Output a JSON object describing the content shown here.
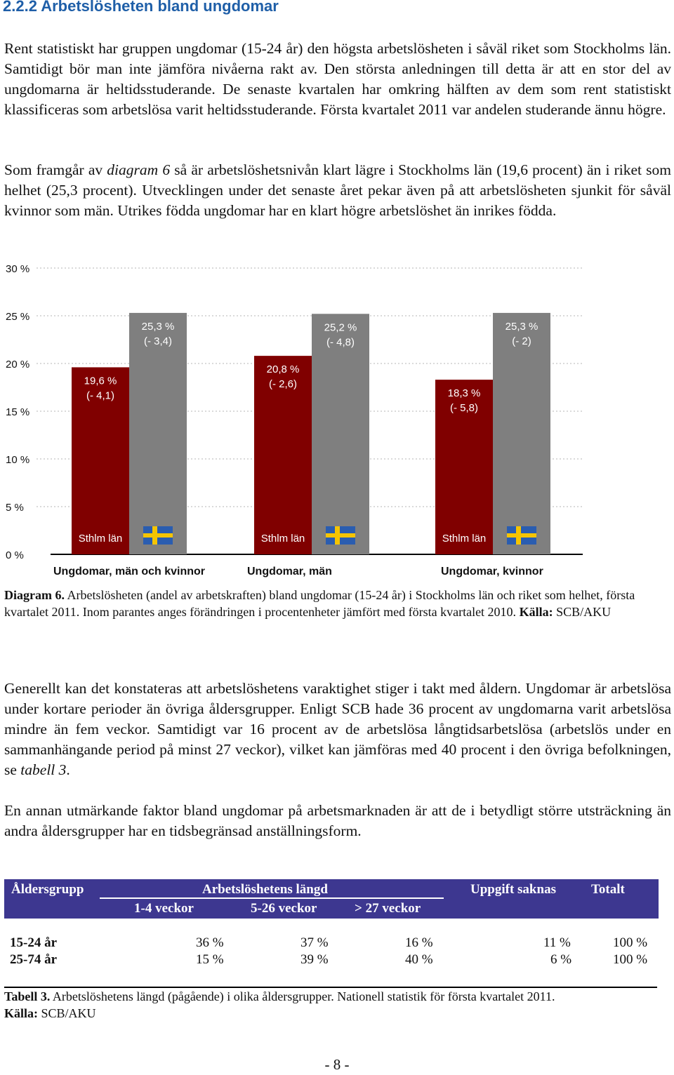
{
  "heading": "2.2.2 Arbetslösheten bland ungdomar",
  "paragraph1": "Rent statistiskt har gruppen ungdomar (15-24 år) den högsta arbetslösheten i såväl riket som Stockholms län. Samtidigt bör man inte jämföra nivåerna rakt av. Den största anledningen till detta är att en stor del av ungdomarna är heltidsstuderande. De senaste kvartalen har omkring hälften av dem som rent statistiskt klassificeras som arbetslösa varit heltidsstuderande. Första kvartalet 2011 var andelen studerande ännu högre.",
  "paragraph2": {
    "before": "Som framgår av ",
    "italic": "diagram 6",
    "after": " så är arbetslöshetsnivån klart lägre i Stockholms län (19,6 procent) än i riket som helhet (25,3 procent). Utvecklingen under det senaste året pekar även på att arbetslösheten sjunkit för såväl kvinnor som män. Utrikes födda ungdomar har en klart högre arbetslöshet än inrikes födda."
  },
  "chart_data": {
    "type": "bar",
    "ylim": [
      0,
      30
    ],
    "yticks": [
      "0 %",
      "5 %",
      "10 %",
      "15 %",
      "20 %",
      "25 %",
      "30 %"
    ],
    "colors": {
      "sthlm": "#800000",
      "riket": "#7f7f7f"
    },
    "groups": [
      {
        "name": "Ungdomar, män och kvinnor",
        "bars": [
          {
            "value": 19.6,
            "label": "19,6 %",
            "change": "(- 4,1)",
            "series": "sthlm",
            "tag": "Sthlm län"
          },
          {
            "value": 25.3,
            "label": "25,3 %",
            "change": "(- 3,4)",
            "series": "riket",
            "tag": "flag"
          }
        ]
      },
      {
        "name": "Ungdomar, män",
        "bars": [
          {
            "value": 20.8,
            "label": "20,8 %",
            "change": "(- 2,6)",
            "series": "sthlm",
            "tag": "Sthlm län"
          },
          {
            "value": 25.2,
            "label": "25,2 %",
            "change": "(- 4,8)",
            "series": "riket",
            "tag": "flag"
          }
        ]
      },
      {
        "name": "Ungdomar, kvinnor",
        "bars": [
          {
            "value": 18.3,
            "label": "18,3 %",
            "change": "(- 5,8)",
            "series": "sthlm",
            "tag": "Sthlm län"
          },
          {
            "value": 25.3,
            "label": "25,3 %",
            "change": "(- 2)",
            "series": "riket",
            "tag": "flag"
          }
        ]
      }
    ]
  },
  "diagram_caption": {
    "label": "Diagram 6.",
    "text": " Arbetslösheten (andel av arbetskraften) bland ungdomar (15-24 år) i Stockholms län och riket som helhet, första kvartalet 2011. Inom parantes anges förändringen i procentenheter jämfört med första kvartalet 2010. ",
    "source_label": "Källa:",
    "source": " SCB/AKU"
  },
  "paragraph3": {
    "before": "Generellt kan det konstateras att arbetslöshetens varaktighet stiger i takt med åldern. Ungdomar är arbetslösa under kortare perioder än övriga åldersgrupper. Enligt SCB hade 36 procent av ungdomarna varit arbetslösa mindre än fem veckor. Samtidigt var 16 procent av de arbetslösa långtidsarbetslösa (arbetslös under en sammanhängande period på minst 27 veckor), vilket kan jämföras med 40 procent i den övriga befolkningen, se ",
    "italic": "tabell 3",
    "after": "."
  },
  "paragraph4": "En annan utmärkande faktor bland ungdomar på arbetsmarknaden är att de i betydligt större utsträckning än andra åldersgrupper har en tidsbegränsad anställningsform.",
  "table": {
    "header": {
      "group": "Åldersgrupp",
      "length": "Arbetslöshetens längd",
      "missing": "Uppgift saknas",
      "total": "Totalt",
      "sub": [
        "1-4 veckor",
        "5-26 veckor",
        "> 27 veckor"
      ]
    },
    "rows": [
      {
        "group": "15-24 år",
        "v1": "36 %",
        "v2": "37 %",
        "v3": "16 %",
        "missing": "11 %",
        "total": "100 %"
      },
      {
        "group": "25-74 år",
        "v1": "15 %",
        "v2": "39 %",
        "v3": "40 %",
        "missing": "6 %",
        "total": "100 %"
      }
    ],
    "caption_label": "Tabell 3.",
    "caption_text": " Arbetslöshetens längd (pågående) i olika åldersgrupper. Nationell statistik för första kvartalet 2011.",
    "source_label": "Källa:",
    "source": " SCB/AKU"
  },
  "page_number": "- 8 -"
}
